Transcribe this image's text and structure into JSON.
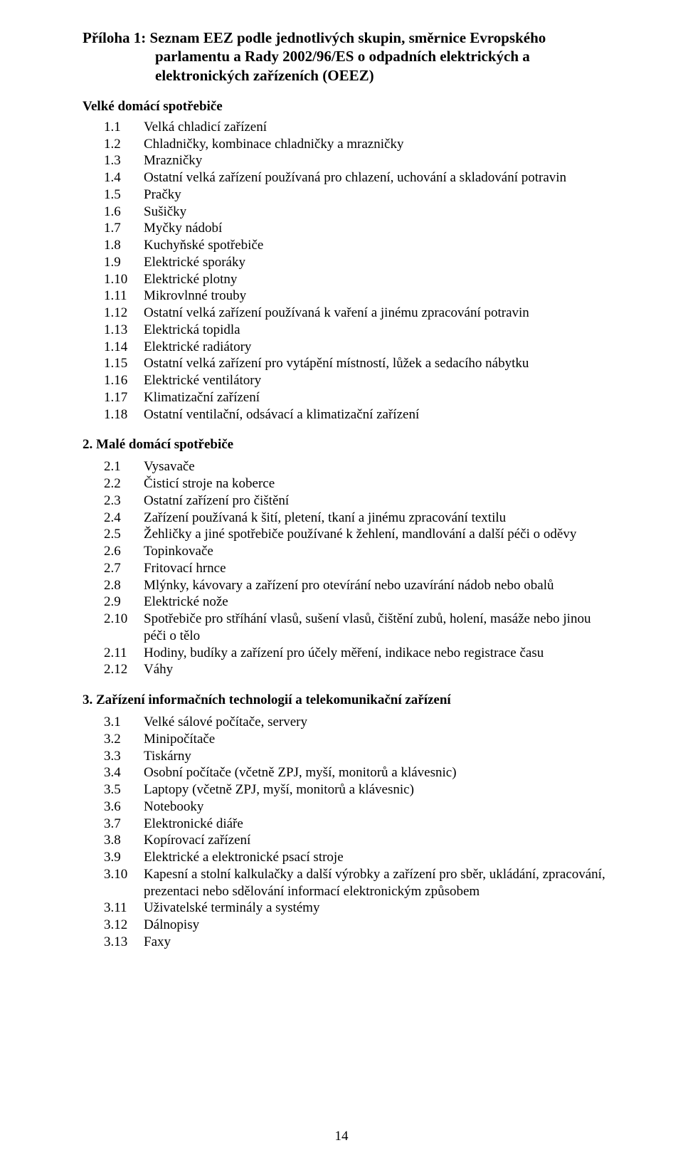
{
  "title_line1": "Příloha 1: Seznam EEZ podle jednotlivých skupin, směrnice Evropského",
  "title_line2": "parlamentu a Rady 2002/96/ES o odpadních elektrických a",
  "title_line3": "elektronických zařízeních (OEEZ)",
  "sections": [
    {
      "heading": "Velké domácí spotřebiče",
      "numbered": false,
      "items": [
        {
          "n": "1.1",
          "t": "Velká chladicí zařízení"
        },
        {
          "n": "1.2",
          "t": "Chladničky, kombinace chladničky a mrazničky"
        },
        {
          "n": "1.3",
          "t": "Mrazničky"
        },
        {
          "n": "1.4",
          "t": "Ostatní velká zařízení používaná pro chlazení, uchování a skladování potravin"
        },
        {
          "n": "1.5",
          "t": "Pračky"
        },
        {
          "n": "1.6",
          "t": "Sušičky"
        },
        {
          "n": "1.7",
          "t": "Myčky nádobí"
        },
        {
          "n": "1.8",
          "t": "Kuchyňské spotřebiče"
        },
        {
          "n": "1.9",
          "t": "Elektrické sporáky"
        },
        {
          "n": "1.10",
          "t": "Elektrické plotny"
        },
        {
          "n": "1.11",
          "t": "Mikrovlnné trouby"
        },
        {
          "n": "1.12",
          "t": "Ostatní velká zařízení používaná k vaření a jinému zpracování potravin"
        },
        {
          "n": "1.13",
          "t": "Elektrická topidla"
        },
        {
          "n": "1.14",
          "t": "Elektrické radiátory"
        },
        {
          "n": "1.15",
          "t": "Ostatní velká zařízení pro vytápění místností, lůžek a sedacího nábytku"
        },
        {
          "n": "1.16",
          "t": "Elektrické ventilátory"
        },
        {
          "n": "1.17",
          "t": "Klimatizační zařízení"
        },
        {
          "n": "1.18",
          "t": "Ostatní ventilační, odsávací a klimatizační zařízení"
        }
      ]
    },
    {
      "heading": "2.   Malé domácí spotřebiče",
      "numbered": true,
      "items": [
        {
          "n": "2.1",
          "t": "Vysavače"
        },
        {
          "n": "2.2",
          "t": "Čisticí stroje na koberce"
        },
        {
          "n": "2.3",
          "t": "Ostatní zařízení pro čištění"
        },
        {
          "n": "2.4",
          "t": "Zařízení používaná k šití, pletení, tkaní a jinému zpracování textilu"
        },
        {
          "n": "2.5",
          "t": "Žehličky a jiné spotřebiče používané k žehlení, mandlování a další péči o oděvy"
        },
        {
          "n": "2.6",
          "t": "Topinkovače"
        },
        {
          "n": "2.7",
          "t": "Fritovací hrnce"
        },
        {
          "n": "2.8",
          "t": "Mlýnky, kávovary a zařízení pro otevírání nebo uzavírání nádob nebo obalů"
        },
        {
          "n": "2.9",
          "t": "Elektrické nože"
        },
        {
          "n": "2.10",
          "t": "Spotřebiče pro stříhání vlasů, sušení vlasů, čištění zubů, holení, masáže nebo jinou péči o tělo"
        },
        {
          "n": "2.11",
          "t": "Hodiny, budíky a zařízení pro účely měření, indikace nebo registrace času"
        },
        {
          "n": "2.12",
          "t": "Váhy"
        }
      ]
    },
    {
      "heading": "3.   Zařízení informačních technologií a telekomunikační zařízení",
      "numbered": true,
      "items": [
        {
          "n": "3.1",
          "t": "Velké sálové počítače, servery"
        },
        {
          "n": "3.2",
          "t": "Minipočítače"
        },
        {
          "n": "3.3",
          "t": "Tiskárny"
        },
        {
          "n": "3.4",
          "t": "Osobní počítače (včetně ZPJ, myší, monitorů a  klávesnic)"
        },
        {
          "n": "3.5",
          "t": "Laptopy (včetně ZPJ, myší, monitorů a  klávesnic)"
        },
        {
          "n": "3.6",
          "t": "Notebooky"
        },
        {
          "n": "3.7",
          "t": "Elektronické diáře"
        },
        {
          "n": "3.8",
          "t": "Kopírovací zařízení"
        },
        {
          "n": "3.9",
          "t": "Elektrické a elektronické psací stroje"
        },
        {
          "n": "3.10",
          "t": "Kapesní a stolní kalkulačky a další výrobky a zařízení pro sběr, ukládání, zpracování, prezentaci nebo sdělování informací elektronickým způsobem"
        },
        {
          "n": "3.11",
          "t": "Uživatelské terminály a systémy"
        },
        {
          "n": "3.12",
          "t": "Dálnopisy"
        },
        {
          "n": "3.13",
          "t": "Faxy"
        }
      ]
    }
  ],
  "page_number": "14"
}
